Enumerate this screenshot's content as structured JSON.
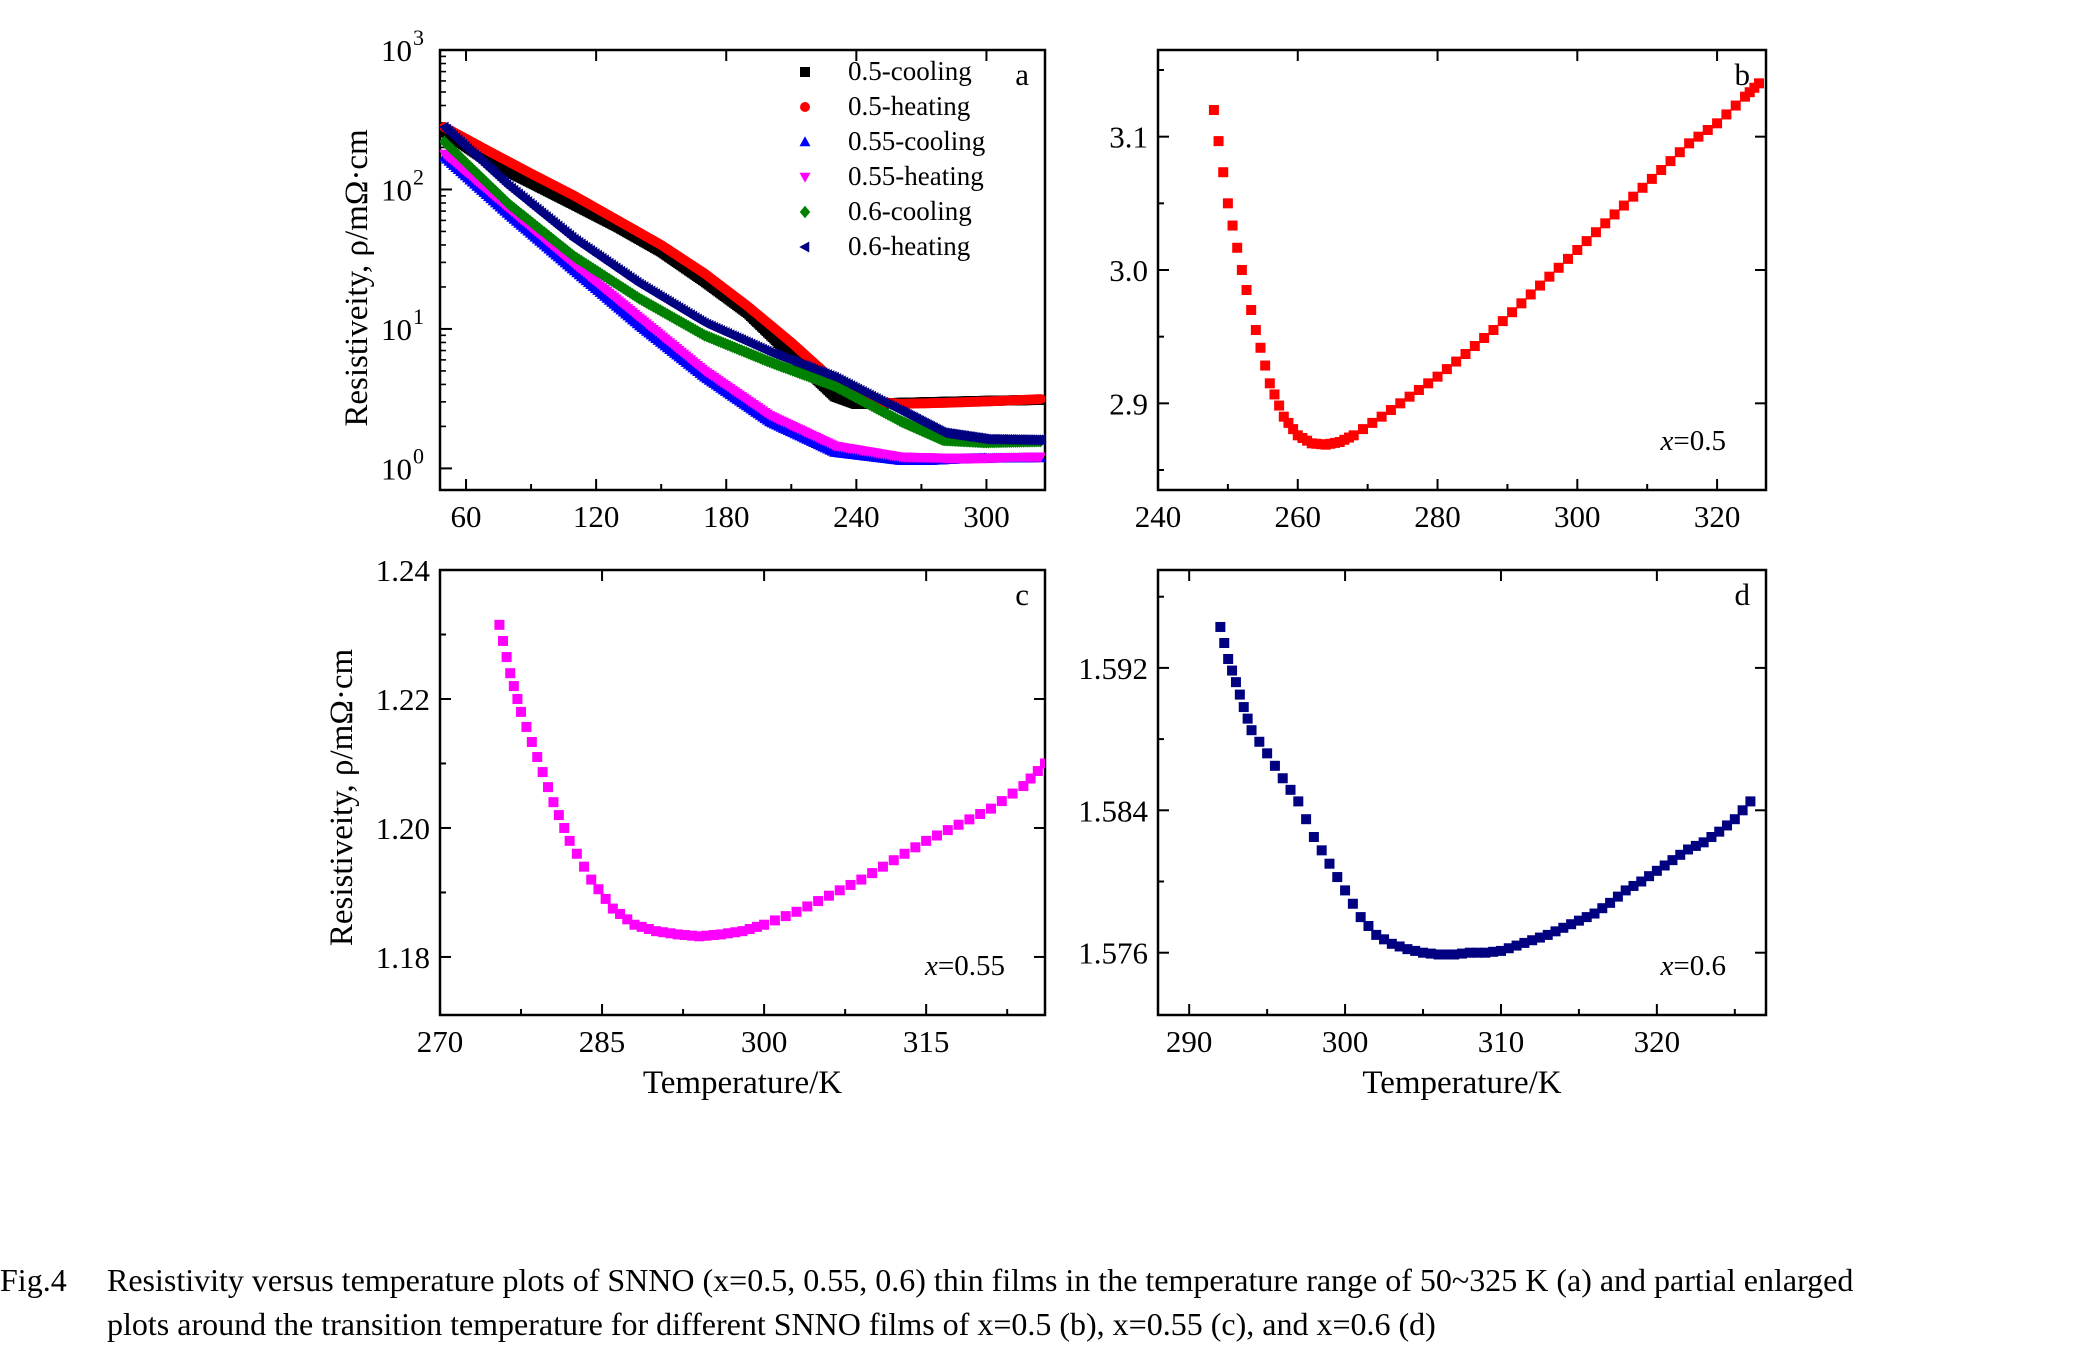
{
  "caption": {
    "label": "Fig.4",
    "line1": "Resistivity versus temperature plots of SNNO (x=0.5, 0.55, 0.6) thin films in the temperature range of 50~325 K (a) and partial enlarged",
    "line2": "plots around the transition temperature for different SNNO films of x=0.5 (b), x=0.55 (c), and x=0.6 (d)"
  },
  "colors": {
    "c05cool": "#000000",
    "c05heat": "#ff0000",
    "c055cool": "#0000ff",
    "c055heat": "#ff00ff",
    "c06cool": "#008000",
    "c06heat": "#000080"
  },
  "chart_data": [
    {
      "panel": "a",
      "type": "scatter",
      "yscale": "log",
      "ylabel": "Resistiveity, ρ/mΩ·cm",
      "xlabel": "",
      "xlim": [
        48,
        327
      ],
      "ylim": [
        0.7,
        1000
      ],
      "xticks": [
        60,
        120,
        180,
        240,
        300
      ],
      "yticks": [
        1,
        10,
        100,
        1000
      ],
      "ytick_exponents": [
        "0",
        "1",
        "2",
        "3"
      ],
      "legend_position": "top-right",
      "series": [
        {
          "name": "0.5-cooling",
          "marker": "square",
          "color_key": "c05cool",
          "x": [
            50,
            70,
            90,
            110,
            130,
            150,
            170,
            190,
            210,
            230,
            240,
            250,
            260,
            280,
            300,
            325
          ],
          "y": [
            260,
            160,
            112,
            78,
            54,
            36,
            22,
            13,
            6.5,
            3.3,
            2.9,
            2.9,
            2.95,
            3.0,
            3.05,
            3.1
          ]
        },
        {
          "name": "0.5-heating",
          "marker": "circle",
          "color_key": "c05heat",
          "x": [
            50,
            70,
            90,
            110,
            130,
            150,
            170,
            190,
            210,
            230,
            250,
            260,
            280,
            300,
            325
          ],
          "y": [
            280,
            190,
            130,
            90,
            60,
            40,
            25,
            14.5,
            8,
            4.2,
            3.0,
            2.9,
            2.95,
            3.02,
            3.14
          ]
        },
        {
          "name": "0.55-cooling",
          "marker": "triangle-up",
          "color_key": "c055cool",
          "x": [
            50,
            80,
            110,
            140,
            170,
            200,
            230,
            260,
            275,
            290,
            300,
            325
          ],
          "y": [
            170,
            65,
            26,
            10.5,
            4.5,
            2.15,
            1.3,
            1.14,
            1.14,
            1.17,
            1.18,
            1.19
          ]
        },
        {
          "name": "0.55-heating",
          "marker": "triangle-down",
          "color_key": "c055heat",
          "x": [
            50,
            80,
            110,
            140,
            170,
            200,
            230,
            260,
            280,
            290,
            300,
            325
          ],
          "y": [
            180,
            72,
            29,
            12,
            5,
            2.4,
            1.45,
            1.21,
            1.19,
            1.185,
            1.19,
            1.21
          ]
        },
        {
          "name": "0.6-cooling",
          "marker": "diamond",
          "color_key": "c06cool",
          "x": [
            50,
            80,
            110,
            140,
            170,
            200,
            230,
            260,
            280,
            300,
            325
          ],
          "y": [
            220,
            78,
            33,
            16.5,
            9,
            5.8,
            3.9,
            2.2,
            1.6,
            1.54,
            1.57
          ]
        },
        {
          "name": "0.6-heating",
          "marker": "triangle-left",
          "color_key": "c06heat",
          "x": [
            50,
            80,
            110,
            140,
            170,
            200,
            230,
            260,
            280,
            300,
            325
          ],
          "y": [
            280,
            105,
            44,
            21,
            11,
            6.8,
            4.5,
            2.6,
            1.8,
            1.62,
            1.6
          ]
        }
      ]
    },
    {
      "panel": "b",
      "type": "scatter",
      "xlim": [
        240,
        327
      ],
      "ylim": [
        2.835,
        3.165
      ],
      "xticks": [
        240,
        260,
        280,
        300,
        320
      ],
      "yticks": [
        2.9,
        3.0,
        3.1
      ],
      "ytick_labels": [
        "2.9",
        "3.0",
        "3.1"
      ],
      "annotation_prefix": "x",
      "annotation_value": "=0.5",
      "series": [
        {
          "color_key": "c05heat",
          "x": [
            248,
            250,
            252,
            254,
            256,
            258,
            260,
            262,
            264,
            266,
            268,
            272,
            276,
            280,
            284,
            288,
            292,
            296,
            300,
            304,
            308,
            312,
            316,
            320,
            324,
            326
          ],
          "y": [
            3.12,
            3.05,
            3.0,
            2.955,
            2.915,
            2.89,
            2.876,
            2.87,
            2.869,
            2.871,
            2.876,
            2.89,
            2.905,
            2.92,
            2.937,
            2.955,
            2.975,
            2.995,
            3.015,
            3.035,
            3.055,
            3.075,
            3.095,
            3.11,
            3.13,
            3.14
          ]
        }
      ]
    },
    {
      "panel": "c",
      "type": "scatter",
      "ylabel": "Resistiveity, ρ/mΩ·cm",
      "xlabel": "Temperature/K",
      "xlim": [
        270,
        326
      ],
      "ylim": [
        1.171,
        1.24
      ],
      "xticks": [
        270,
        285,
        300,
        315
      ],
      "yticks": [
        1.18,
        1.2,
        1.22,
        1.24
      ],
      "ytick_labels": [
        "1.18",
        "1.20",
        "1.22",
        "1.24"
      ],
      "annotation_prefix": "x",
      "annotation_value": "=0.55",
      "series": [
        {
          "color_key": "c055heat",
          "x": [
            275.5,
            276.5,
            277.5,
            279,
            280.5,
            282,
            284,
            286,
            288,
            290,
            292,
            294,
            296,
            298,
            300,
            303,
            306,
            309,
            312,
            315,
            318,
            321,
            324,
            326
          ],
          "y": [
            1.2315,
            1.224,
            1.218,
            1.211,
            1.204,
            1.198,
            1.192,
            1.1875,
            1.185,
            1.184,
            1.1835,
            1.1832,
            1.1835,
            1.184,
            1.185,
            1.187,
            1.1895,
            1.192,
            1.195,
            1.198,
            1.2005,
            1.203,
            1.2065,
            1.21
          ]
        }
      ]
    },
    {
      "panel": "d",
      "type": "scatter",
      "xlabel": "Temperature/K",
      "xlim": [
        288,
        327
      ],
      "ylim": [
        1.5725,
        1.5975
      ],
      "xticks": [
        290,
        300,
        310,
        320
      ],
      "yticks": [
        1.576,
        1.584,
        1.592
      ],
      "ytick_labels": [
        "1.576",
        "1.584",
        "1.592"
      ],
      "annotation_prefix": "x",
      "annotation_value": "=0.6",
      "series": [
        {
          "color_key": "c06heat",
          "x": [
            292,
            292.5,
            293,
            293.5,
            294,
            295,
            296,
            297,
            298,
            299,
            300,
            301,
            302,
            303,
            304,
            305,
            306,
            307,
            308,
            309,
            310,
            311,
            312,
            313,
            314,
            315,
            316,
            317,
            318,
            319,
            320,
            321,
            322,
            323,
            324,
            325,
            326
          ],
          "y": [
            1.5943,
            1.5925,
            1.5912,
            1.5898,
            1.5885,
            1.5872,
            1.5858,
            1.5845,
            1.5825,
            1.581,
            1.5795,
            1.578,
            1.577,
            1.5765,
            1.5762,
            1.576,
            1.5759,
            1.5759,
            1.576,
            1.576,
            1.5761,
            1.5764,
            1.5767,
            1.577,
            1.5774,
            1.5778,
            1.5782,
            1.5788,
            1.5795,
            1.58,
            1.5806,
            1.5812,
            1.5818,
            1.5822,
            1.5828,
            1.5835,
            1.5845
          ]
        }
      ]
    }
  ]
}
